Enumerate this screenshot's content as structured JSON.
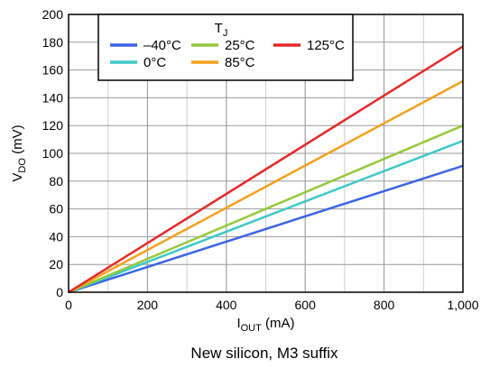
{
  "chart_data": {
    "type": "line",
    "title": "",
    "caption": "New silicon, M3 suffix",
    "xlabel": {
      "main": "I",
      "sub": "OUT",
      "unit": " (mA)"
    },
    "ylabel": {
      "main": "V",
      "sub": "DO",
      "unit": " (mV)"
    },
    "xlim": [
      0,
      1000
    ],
    "ylim": [
      0,
      200
    ],
    "x_ticks": [
      0,
      200,
      400,
      600,
      800,
      1000
    ],
    "x_tick_labels": [
      "0",
      "200",
      "400",
      "600",
      "800",
      "1,000"
    ],
    "y_ticks": [
      0,
      20,
      40,
      60,
      80,
      100,
      120,
      140,
      160,
      180,
      200
    ],
    "y_tick_labels": [
      "0",
      "20",
      "40",
      "60",
      "80",
      "100",
      "120",
      "140",
      "160",
      "180",
      "200"
    ],
    "grid": true,
    "legend": {
      "title": {
        "main": "T",
        "sub": "J"
      },
      "placement": "top-left"
    },
    "series": [
      {
        "name": "–40°C",
        "color": "#3c64e6",
        "x": [
          0,
          1000
        ],
        "y": [
          0,
          91
        ]
      },
      {
        "name": "0°C",
        "color": "#3dc8c8",
        "x": [
          0,
          1000
        ],
        "y": [
          0,
          109
        ]
      },
      {
        "name": "25°C",
        "color": "#96c83c",
        "x": [
          0,
          1000
        ],
        "y": [
          0,
          120
        ]
      },
      {
        "name": "85°C",
        "color": "#f5a01e",
        "x": [
          0,
          1000
        ],
        "y": [
          0,
          152
        ]
      },
      {
        "name": "125°C",
        "color": "#e62828",
        "x": [
          0,
          1000
        ],
        "y": [
          0,
          177
        ]
      }
    ]
  }
}
